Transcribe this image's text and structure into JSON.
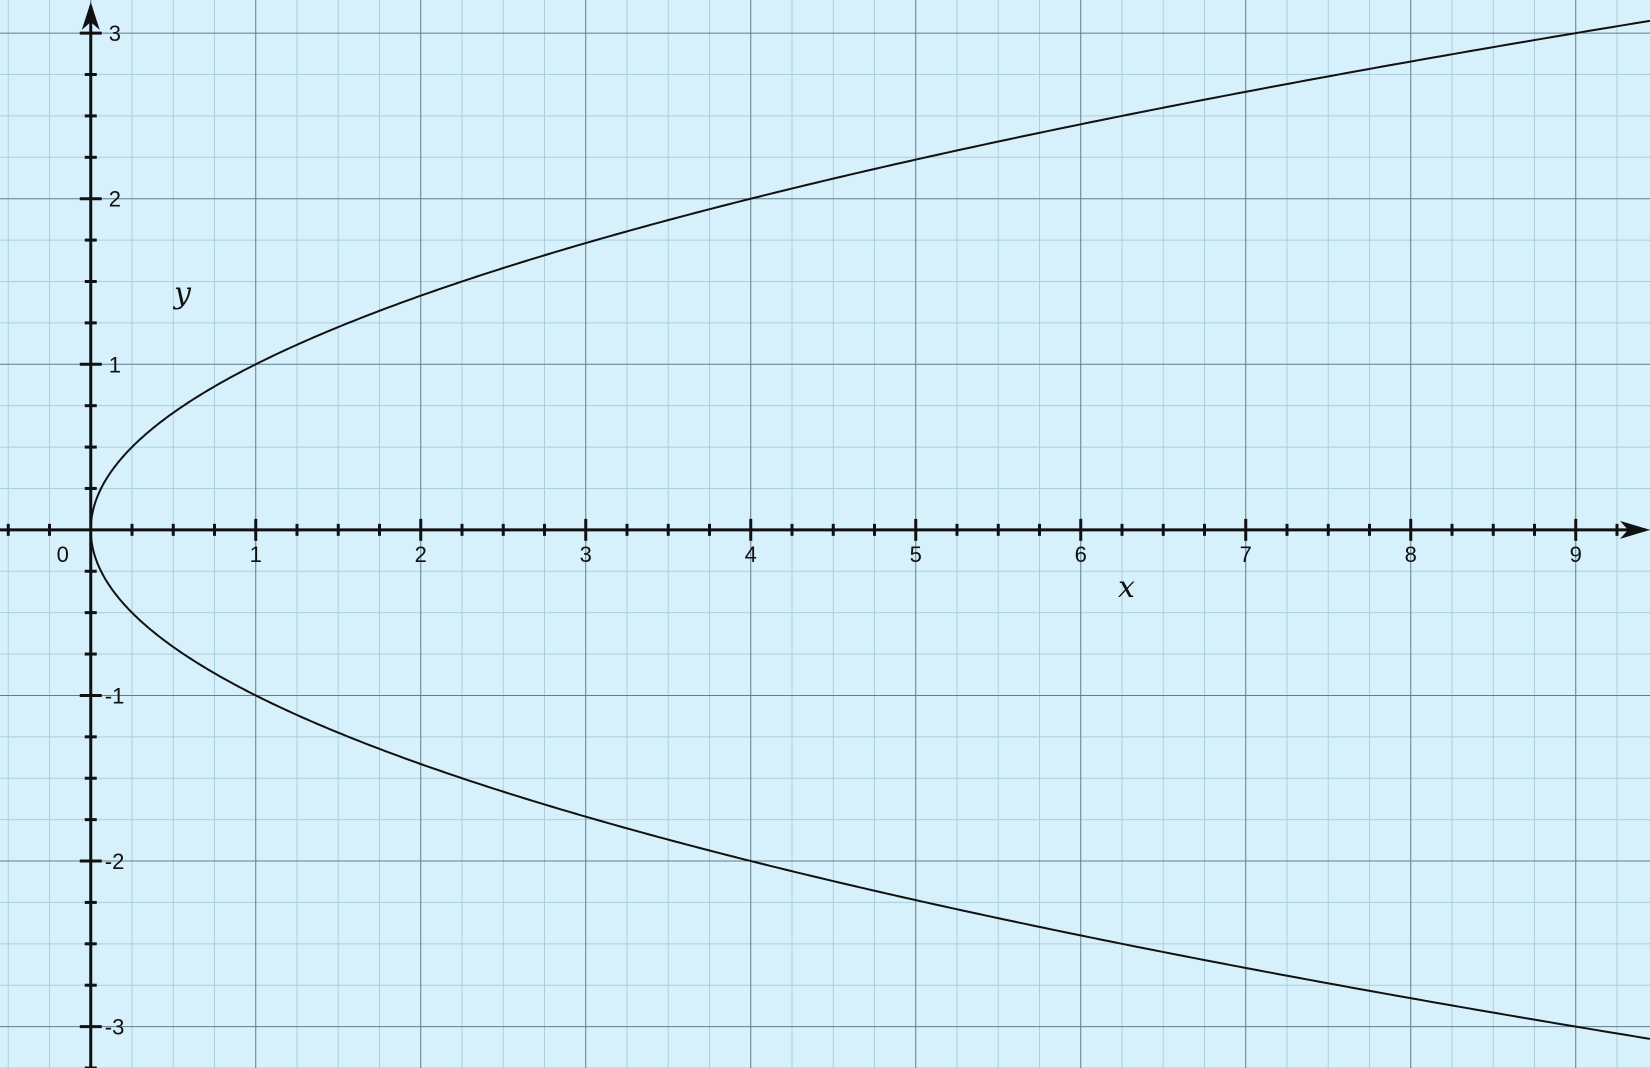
{
  "chart_data": {
    "type": "line",
    "title": "",
    "xlabel": "x",
    "ylabel": "y",
    "xlim": [
      -0.55,
      9.45
    ],
    "ylim": [
      -3.25,
      3.2
    ],
    "x_ticks": [
      "0",
      "1",
      "2",
      "3",
      "4",
      "5",
      "6",
      "7",
      "8",
      "9"
    ],
    "y_ticks": [
      "3",
      "2",
      "1",
      "-1",
      "-2",
      "-3"
    ],
    "minor_divisions_per_unit": 4,
    "grid": true,
    "legend": "none",
    "series": [
      {
        "x": [
          0,
          0.0625,
          0.25,
          0.5625,
          1,
          1.5625,
          2.25,
          3.0625,
          4,
          5.0625,
          6.25,
          7.5625,
          9,
          9.45
        ],
        "y": [
          0,
          0.25,
          0.5,
          0.75,
          1,
          1.25,
          1.5,
          1.75,
          2,
          2.25,
          2.5,
          2.75,
          3,
          3.074
        ],
        "color": "#111111"
      },
      {
        "x": [
          0,
          0.0625,
          0.25,
          0.5625,
          1,
          1.5625,
          2.25,
          3.0625,
          4,
          5.0625,
          6.25,
          7.5625,
          9,
          9.45
        ],
        "y": [
          0,
          -0.25,
          -0.5,
          -0.75,
          -1,
          -1.25,
          -1.5,
          -1.75,
          -2,
          -2.25,
          -2.5,
          -2.75,
          -3,
          -3.074
        ],
        "color": "#111111"
      }
    ],
    "colors": {
      "background": "#d6f1fb",
      "grid_major": "#5f7d8a",
      "grid_minor": "#a9cfdc",
      "axis": "#111111"
    }
  }
}
